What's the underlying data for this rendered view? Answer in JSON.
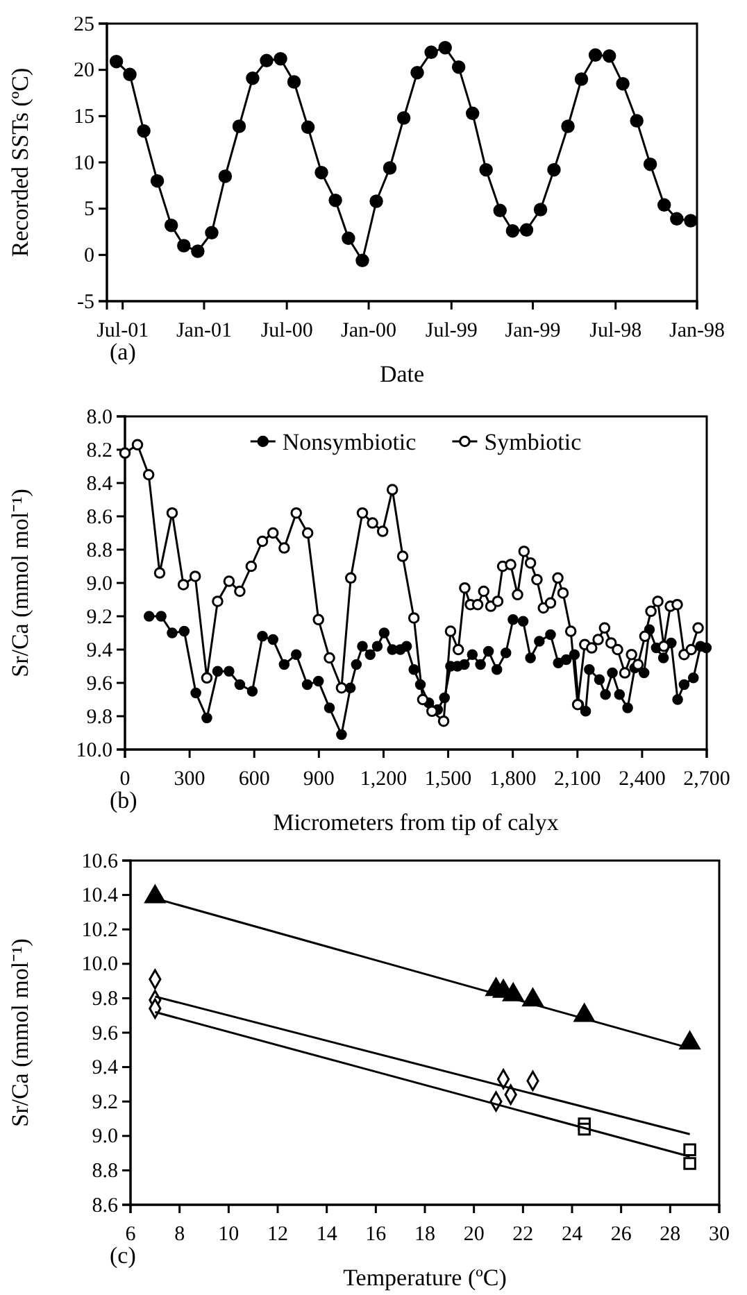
{
  "chart_data": [
    {
      "type": "line",
      "xlabel": "Date",
      "ylabel": "Recorded SSTs (ºC)",
      "annotations": [
        "(a)"
      ],
      "x": [
        "2001-07-15",
        "2001-06-15",
        "2001-05-15",
        "2001-04-15",
        "2001-03-15",
        "2001-02-15",
        "2001-01-15",
        "2000-12-15",
        "2000-11-15",
        "2000-10-15",
        "2000-09-15",
        "2000-08-15",
        "2000-07-15",
        "2000-06-15",
        "2000-05-15",
        "2000-04-15",
        "2000-03-15",
        "2000-02-15",
        "2000-01-15",
        "1999-12-15",
        "1999-11-15",
        "1999-10-15",
        "1999-09-15",
        "1999-08-15",
        "1999-07-15",
        "1999-06-15",
        "1999-05-15",
        "1999-04-15",
        "1999-03-15",
        "1999-02-15",
        "1999-01-15",
        "1998-12-15",
        "1998-11-15",
        "1998-10-15",
        "1998-09-15",
        "1998-08-15",
        "1998-07-15",
        "1998-06-15",
        "1998-05-15",
        "1998-04-15",
        "1998-03-15",
        "1998-02-15",
        "1998-01-15"
      ],
      "series": [
        {
          "color": "#000000",
          "marker": "circle",
          "values": [
            20.9,
            19.5,
            13.4,
            8.0,
            3.2,
            1.0,
            0.4,
            2.4,
            8.5,
            13.9,
            19.1,
            21.0,
            21.2,
            18.7,
            13.8,
            8.9,
            5.9,
            1.8,
            -0.6,
            5.8,
            9.4,
            14.8,
            19.7,
            21.9,
            22.4,
            20.3,
            15.3,
            9.2,
            4.8,
            2.6,
            2.7,
            4.9,
            9.2,
            13.9,
            19.0,
            21.6,
            21.5,
            18.5,
            14.5,
            9.8,
            5.4,
            3.9,
            3.7
          ]
        }
      ],
      "xlim": [
        "2001-08-05",
        "1998-01-01"
      ],
      "xticks": [
        {
          "value": "2001-07-01",
          "label": "Jul-01"
        },
        {
          "value": "2001-01-01",
          "label": "Jan-01"
        },
        {
          "value": "2000-07-01",
          "label": "Jul-00"
        },
        {
          "value": "2000-01-01",
          "label": "Jan-00"
        },
        {
          "value": "1999-07-01",
          "label": "Jul-99"
        },
        {
          "value": "1999-01-01",
          "label": "Jan-99"
        },
        {
          "value": "1998-07-01",
          "label": "Jul-98"
        },
        {
          "value": "1998-01-01",
          "label": "Jan-98"
        }
      ],
      "ylim": [
        -5,
        25
      ],
      "yticks": [
        -5,
        0,
        5,
        10,
        15,
        20,
        25
      ],
      "legend": false
    },
    {
      "type": "line",
      "xlabel": "Micrometers from tip of calyx",
      "ylabel": "Sr/Ca (mmol mol⁻¹)",
      "annotations": [
        "(b)"
      ],
      "legend": "top",
      "series": [
        {
          "name": "Nonsymbiotic",
          "color": "#000000",
          "marker": "circle",
          "x": [
            112,
            168,
            219,
            275,
            329,
            380,
            430,
            483,
            533,
            591,
            638,
            687,
            739,
            795,
            846,
            898,
            949,
            1005,
            1046,
            1074,
            1102,
            1138,
            1171,
            1203,
            1241,
            1278,
            1307,
            1341,
            1371,
            1410,
            1451,
            1483,
            1511,
            1543,
            1575,
            1612,
            1650,
            1687,
            1726,
            1768,
            1801,
            1848,
            1882,
            1923,
            1975,
            2011,
            2048,
            2086,
            2106,
            2138,
            2155,
            2202,
            2230,
            2262,
            2295,
            2333,
            2366,
            2409,
            2434,
            2466,
            2499,
            2535,
            2565,
            2595,
            2638,
            2671,
            2698
          ],
          "values": [
            9.2,
            9.2,
            9.3,
            9.29,
            9.66,
            9.81,
            9.53,
            9.53,
            9.61,
            9.65,
            9.32,
            9.34,
            9.49,
            9.43,
            9.61,
            9.59,
            9.75,
            9.91,
            9.63,
            9.49,
            9.38,
            9.43,
            9.38,
            9.3,
            9.4,
            9.4,
            9.38,
            9.52,
            9.61,
            9.72,
            9.76,
            9.69,
            9.5,
            9.5,
            9.49,
            9.43,
            9.49,
            9.41,
            9.52,
            9.42,
            9.22,
            9.23,
            9.45,
            9.35,
            9.31,
            9.48,
            9.46,
            9.43,
            9.73,
            9.77,
            9.52,
            9.58,
            9.67,
            9.54,
            9.67,
            9.75,
            9.51,
            9.54,
            9.28,
            9.39,
            9.45,
            9.36,
            9.7,
            9.61,
            9.57,
            9.38,
            9.39
          ]
        },
        {
          "name": "Symbiotic",
          "color": "#000000",
          "marker": "circle-open",
          "x": [
            0,
            58,
            110,
            161,
            219,
            271,
            326,
            380,
            430,
            483,
            533,
            586,
            638,
            687,
            739,
            795,
            848,
            898,
            949,
            1005,
            1048,
            1102,
            1149,
            1196,
            1241,
            1289,
            1341,
            1382,
            1425,
            1479,
            1511,
            1547,
            1577,
            1603,
            1637,
            1665,
            1698,
            1730,
            1753,
            1790,
            1822,
            1852,
            1882,
            1912,
            1942,
            1975,
            2009,
            2033,
            2069,
            2101,
            2134,
            2166,
            2196,
            2226,
            2256,
            2286,
            2320,
            2351,
            2381,
            2413,
            2441,
            2473,
            2501,
            2531,
            2563,
            2595,
            2628,
            2660
          ],
          "values": [
            8.22,
            8.17,
            8.35,
            8.94,
            8.58,
            9.01,
            8.96,
            9.57,
            9.11,
            8.99,
            9.05,
            8.9,
            8.75,
            8.7,
            8.79,
            8.58,
            8.7,
            9.22,
            9.45,
            9.63,
            8.97,
            8.58,
            8.64,
            8.69,
            8.44,
            8.84,
            9.21,
            9.7,
            9.77,
            9.83,
            9.29,
            9.4,
            9.03,
            9.13,
            9.13,
            9.05,
            9.14,
            9.11,
            8.9,
            8.89,
            9.07,
            8.81,
            8.88,
            8.98,
            9.15,
            9.12,
            8.97,
            9.06,
            9.29,
            9.73,
            9.37,
            9.39,
            9.34,
            9.27,
            9.36,
            9.4,
            9.54,
            9.43,
            9.49,
            9.32,
            9.17,
            9.11,
            9.38,
            9.14,
            9.13,
            9.43,
            9.4,
            9.27
          ]
        }
      ],
      "xlim": [
        0,
        2700
      ],
      "xticks": [
        0,
        300,
        600,
        900,
        {
          "value": 1200,
          "label": "1,200"
        },
        {
          "value": 1500,
          "label": "1,500"
        },
        {
          "value": 1800,
          "label": "1,800"
        },
        {
          "value": 2100,
          "label": "2,100"
        },
        {
          "value": 2400,
          "label": "2,400"
        },
        {
          "value": 2700,
          "label": "2,700"
        }
      ],
      "ylim": [
        10,
        8
      ],
      "yticks": [
        {
          "value": 8,
          "label": "8.0"
        },
        8.2,
        8.4,
        8.6,
        8.8,
        {
          "value": 9,
          "label": "9.0"
        },
        9.2,
        9.4,
        9.6,
        9.8,
        {
          "value": 10,
          "label": "10.0"
        }
      ]
    },
    {
      "type": "scatter",
      "xlabel": "Temperature (ºC)",
      "ylabel": "Sr/Ca (mmol mol⁻¹)",
      "annotations": [
        "(c)"
      ],
      "legend": false,
      "series": [
        {
          "color": "#000000",
          "marker": "triangle",
          "x": [
            7.0,
            20.9,
            21.2,
            21.6,
            22.4,
            24.5,
            28.8
          ],
          "values": [
            10.39,
            9.85,
            9.84,
            9.82,
            9.79,
            9.7,
            9.54
          ]
        },
        {
          "color": "#000000",
          "marker": "diamond-open",
          "x": [
            7.0,
            7.0,
            7.0,
            20.9,
            21.2,
            21.5,
            22.4
          ],
          "values": [
            9.91,
            9.79,
            9.74,
            9.2,
            9.33,
            9.24,
            9.32
          ]
        },
        {
          "color": "#000000",
          "marker": "square-open",
          "x": [
            24.5,
            24.5,
            28.8,
            28.8
          ],
          "values": [
            9.07,
            9.04,
            8.92,
            8.84
          ]
        },
        {
          "type": "line",
          "color": "#000000",
          "marker": "none",
          "x": [
            7.0,
            28.8
          ],
          "values": [
            10.38,
            9.51
          ]
        },
        {
          "type": "line",
          "color": "#000000",
          "marker": "none",
          "x": [
            7.0,
            28.8
          ],
          "values": [
            9.81,
            9.01
          ]
        },
        {
          "type": "line",
          "color": "#000000",
          "marker": "none",
          "x": [
            7.0,
            28.8
          ],
          "values": [
            9.72,
            8.88
          ]
        }
      ],
      "xlim": [
        6,
        30
      ],
      "xticks": [
        6,
        8,
        10,
        12,
        14,
        16,
        18,
        20,
        22,
        24,
        26,
        28,
        30
      ],
      "ylim": [
        8.6,
        10.6
      ],
      "yticks": [
        {
          "value": 8.6,
          "label": "8.6"
        },
        8.8,
        {
          "value": 9,
          "label": "9.0"
        },
        9.2,
        9.4,
        9.6,
        9.8,
        {
          "value": 10,
          "label": "10.0"
        },
        10.2,
        10.4,
        10.6
      ]
    }
  ]
}
